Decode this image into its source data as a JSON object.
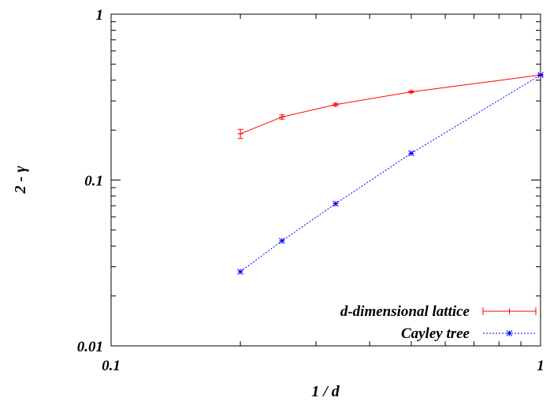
{
  "chart_data": {
    "type": "line",
    "xscale": "log",
    "yscale": "log",
    "xlim": [
      0.1,
      1
    ],
    "ylim": [
      0.01,
      1
    ],
    "xlabel": "1 / d",
    "ylabel": "2 - γ",
    "x_ticks": [
      {
        "value": 0.1,
        "label": "0.1"
      },
      {
        "value": 1,
        "label": "1"
      }
    ],
    "y_ticks": [
      {
        "value": 0.01,
        "label": "0.01"
      },
      {
        "value": 0.1,
        "label": "0.1"
      },
      {
        "value": 1,
        "label": "1"
      }
    ],
    "grid": false,
    "legend_position": "bottom-right",
    "series": [
      {
        "name": "d-dimensional lattice",
        "color": "#ff0000",
        "line_style": "solid",
        "marker": "plus",
        "x": [
          0.2,
          0.25,
          0.3333,
          0.5,
          1.0
        ],
        "y": [
          0.19,
          0.24,
          0.285,
          0.34,
          0.43
        ],
        "error": [
          0.012,
          0.007,
          0.005,
          0.004,
          0.004
        ]
      },
      {
        "name": "Cayley tree",
        "color": "#0000ff",
        "line_style": "dotted",
        "marker": "star",
        "x": [
          0.2,
          0.25,
          0.3333,
          0.5,
          1.0
        ],
        "y": [
          0.028,
          0.043,
          0.072,
          0.145,
          0.43
        ]
      }
    ]
  }
}
